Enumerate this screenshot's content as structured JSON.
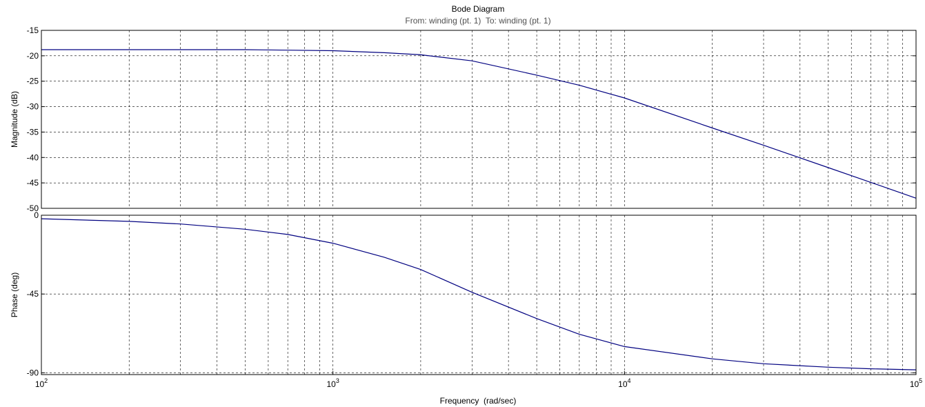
{
  "chart_data": {
    "type": "line",
    "title": "Bode Diagram",
    "subtitle": "From: winding (pt. 1)  To: winding (pt. 1)",
    "xlabel": "Frequency  (rad/sec)",
    "xscale": "log",
    "xlim": [
      100,
      100000
    ],
    "x_ticks": [
      {
        "value": 100,
        "base": "10",
        "exp": "2"
      },
      {
        "value": 1000,
        "base": "10",
        "exp": "3"
      },
      {
        "value": 10000,
        "base": "10",
        "exp": "4"
      },
      {
        "value": 100000,
        "base": "10",
        "exp": "5"
      }
    ],
    "grid": true,
    "colors": {
      "line": "#000080",
      "grid": "#000000",
      "axes": "#000000",
      "subtitle": "#505050"
    },
    "panels": [
      {
        "id": "magnitude",
        "ylabel": "Magnitude (dB)",
        "ylim": [
          -50,
          -15
        ],
        "y_ticks": [
          -15,
          -20,
          -25,
          -30,
          -35,
          -40,
          -45,
          -50
        ],
        "series": [
          {
            "x": [
              100,
              200,
              500,
              700,
              1000,
              1500,
              2000,
              3000,
              5000,
              7000,
              10000,
              20000,
              30000,
              50000,
              70000,
              100000
            ],
            "y": [
              -18.8,
              -18.8,
              -18.8,
              -18.9,
              -19.0,
              -19.4,
              -19.8,
              -21.0,
              -23.8,
              -25.8,
              -28.3,
              -34.2,
              -37.6,
              -42.0,
              -44.9,
              -48.0
            ]
          }
        ]
      },
      {
        "id": "phase",
        "ylabel": "Phase (deg)",
        "ylim": [
          -91,
          0
        ],
        "y_ticks": [
          0,
          -45,
          -90
        ],
        "series": [
          {
            "x": [
              100,
              200,
              300,
              500,
              700,
              1000,
              1500,
              2000,
              3000,
              5000,
              7000,
              10000,
              20000,
              30000,
              50000,
              70000,
              100000
            ],
            "y": [
              -2,
              -3.5,
              -5,
              -8,
              -11,
              -16,
              -24,
              -31,
              -44,
              -59,
              -68,
              -75,
              -82,
              -84.8,
              -86.8,
              -87.7,
              -88.3
            ]
          }
        ]
      }
    ]
  }
}
